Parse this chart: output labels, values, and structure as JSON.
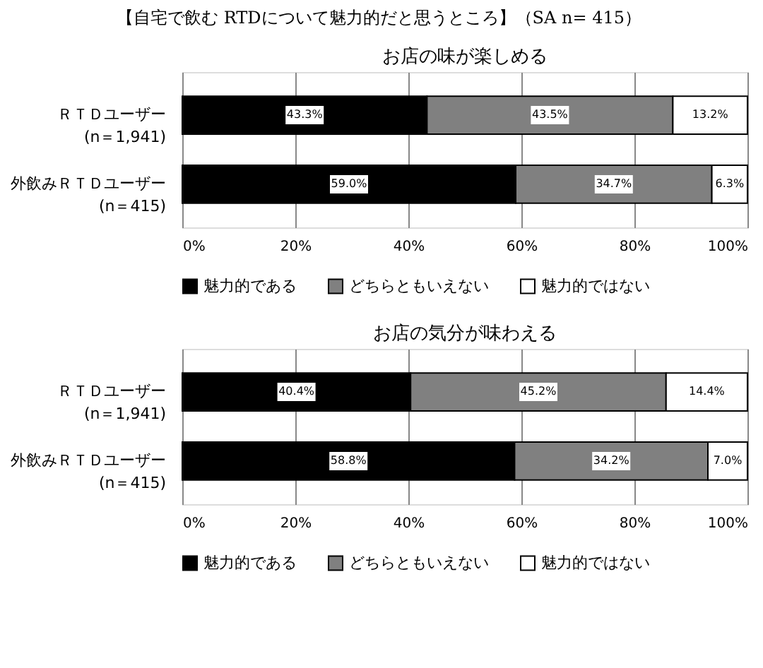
{
  "chart_data": [
    {
      "type": "bar",
      "orientation": "horizontal",
      "stacked": true,
      "title": "【自宅で飲む RTDについて魅力的だと思うところ】（SA n= 415）",
      "subtitle": "お店の味が楽しめる",
      "categories": [
        "ＲＴＤユーザー\n(n＝1,941)",
        "外飲みＲＴＤユーザー\n(n＝415)"
      ],
      "series": [
        {
          "name": "魅力的である",
          "color": "#000000",
          "values": [
            43.3,
            59.0
          ],
          "value_labels": [
            "43.3%",
            "59.0%"
          ]
        },
        {
          "name": "どちらともいえない",
          "color": "#808080",
          "values": [
            43.5,
            34.7
          ],
          "value_labels": [
            "43.5%",
            "34.7%"
          ]
        },
        {
          "name": "魅力的ではない",
          "color": "#ffffff",
          "values": [
            13.2,
            6.3
          ],
          "value_labels": [
            "13.2%",
            "6.3%"
          ]
        }
      ],
      "xlim": [
        0,
        100
      ],
      "xticks": [
        {
          "value": 0,
          "label": "0%"
        },
        {
          "value": 20,
          "label": "20%"
        },
        {
          "value": 40,
          "label": "40%"
        },
        {
          "value": 60,
          "label": "60%"
        },
        {
          "value": 80,
          "label": "80%"
        },
        {
          "value": 100,
          "label": "100%"
        }
      ],
      "grid": "x",
      "legend": "bottom"
    },
    {
      "type": "bar",
      "orientation": "horizontal",
      "stacked": true,
      "title": "お店の気分が味わえる",
      "categories": [
        "ＲＴＤユーザー\n(n＝1,941)",
        "外飲みＲＴＤユーザー\n(n＝415)"
      ],
      "series": [
        {
          "name": "魅力的である",
          "color": "#000000",
          "values": [
            40.4,
            58.8
          ],
          "value_labels": [
            "40.4%",
            "58.8%"
          ]
        },
        {
          "name": "どちらともいえない",
          "color": "#808080",
          "values": [
            45.2,
            34.2
          ],
          "value_labels": [
            "45.2%",
            "34.2%"
          ]
        },
        {
          "name": "魅力的ではない",
          "color": "#ffffff",
          "values": [
            14.4,
            7.0
          ],
          "value_labels": [
            "14.4%",
            "7.0%"
          ]
        }
      ],
      "xlim": [
        0,
        100
      ],
      "xticks": [
        {
          "value": 0,
          "label": "0%"
        },
        {
          "value": 20,
          "label": "20%"
        },
        {
          "value": 40,
          "label": "40%"
        },
        {
          "value": 60,
          "label": "60%"
        },
        {
          "value": 80,
          "label": "80%"
        },
        {
          "value": 100,
          "label": "100%"
        }
      ],
      "grid": "x",
      "legend": "bottom"
    }
  ]
}
